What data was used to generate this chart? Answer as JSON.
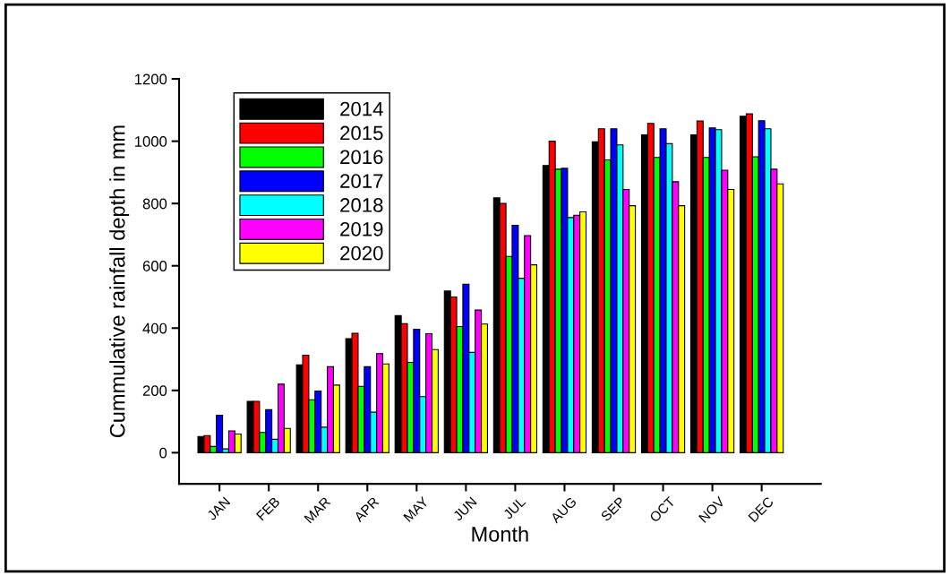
{
  "chart_data": {
    "type": "bar",
    "xlabel": "Month",
    "ylabel": "Cummulative rainfall depth in mm",
    "categories": [
      "JAN",
      "FEB",
      "MAR",
      "APR",
      "MAY",
      "JUN",
      "JUL",
      "AUG",
      "SEP",
      "OCT",
      "NOV",
      "DEC"
    ],
    "series": [
      {
        "name": "2014",
        "color": "#000000",
        "values": [
          52,
          165,
          282,
          366,
          440,
          519,
          818,
          922,
          998,
          1020,
          1020,
          1080
        ]
      },
      {
        "name": "2015",
        "color": "#ff0000",
        "values": [
          55,
          165,
          313,
          383,
          414,
          500,
          800,
          1000,
          1040,
          1057,
          1065,
          1088
        ]
      },
      {
        "name": "2016",
        "color": "#00ff00",
        "values": [
          20,
          65,
          170,
          213,
          290,
          405,
          630,
          910,
          940,
          948,
          948,
          950
        ]
      },
      {
        "name": "2017",
        "color": "#0000ff",
        "values": [
          120,
          138,
          198,
          276,
          396,
          541,
          730,
          913,
          1040,
          1040,
          1043,
          1066
        ]
      },
      {
        "name": "2018",
        "color": "#00ffff",
        "values": [
          12,
          43,
          82,
          130,
          180,
          322,
          560,
          755,
          988,
          992,
          1037,
          1040
        ]
      },
      {
        "name": "2019",
        "color": "#ff00ff",
        "values": [
          70,
          220,
          276,
          318,
          382,
          458,
          697,
          762,
          845,
          870,
          907,
          910
        ]
      },
      {
        "name": "2020",
        "color": "#ffff00",
        "values": [
          60,
          78,
          217,
          285,
          331,
          413,
          603,
          773,
          793,
          793,
          845,
          863
        ]
      }
    ],
    "ylim": [
      -100,
      1200
    ],
    "yticks": [
      0,
      200,
      400,
      600,
      800,
      1000,
      1200
    ],
    "grid": false,
    "legend": "top left"
  }
}
